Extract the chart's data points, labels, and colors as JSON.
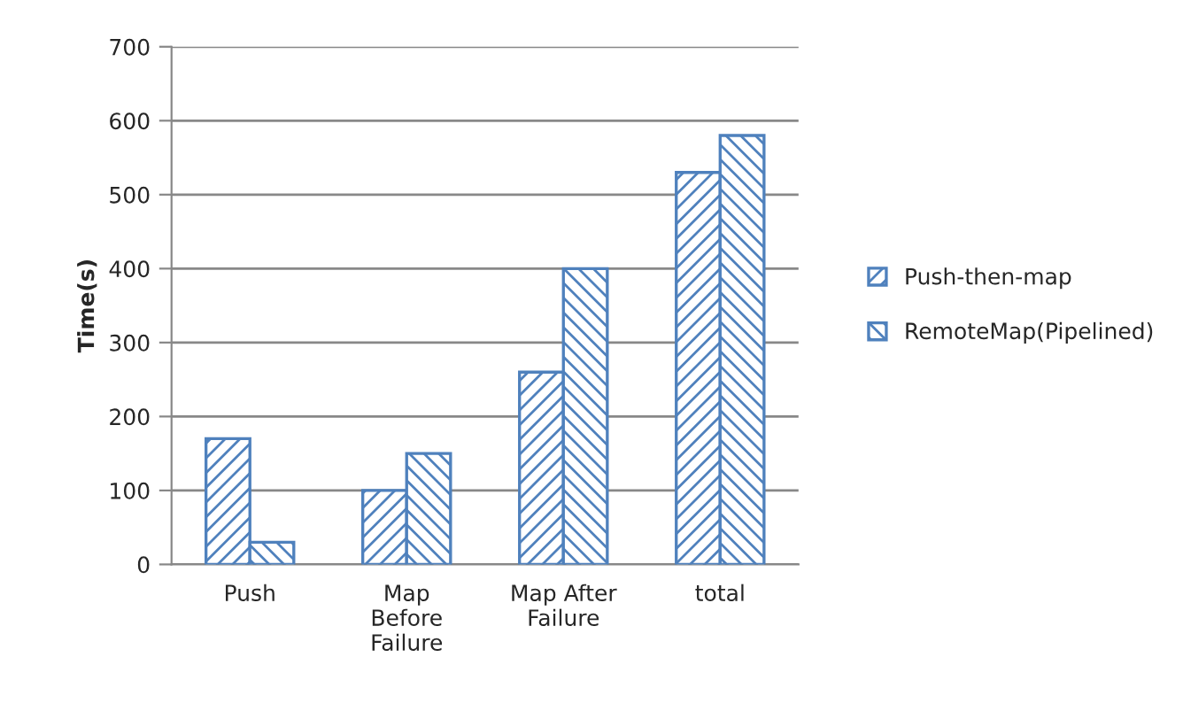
{
  "chart_data": {
    "type": "bar",
    "ylabel": "Time(s)",
    "categories": [
      "Push",
      "Map\nBefore\nFailure",
      "Map After\nFailure",
      "total"
    ],
    "series": [
      {
        "name": "Push-then-map",
        "color": "#4f81bd",
        "values": [
          170,
          100,
          260,
          530
        ]
      },
      {
        "name": "RemoteMap(Pipelined)",
        "color": "#4f81bd",
        "values": [
          30,
          150,
          400,
          580
        ]
      }
    ],
    "ylim": [
      0,
      700
    ],
    "yticks": [
      0,
      100,
      200,
      300,
      400,
      500,
      600,
      700
    ],
    "grid": "y",
    "legend": "right"
  }
}
